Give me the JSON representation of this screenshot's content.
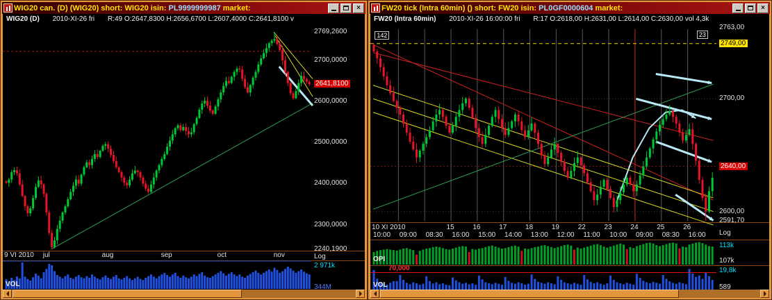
{
  "colors": {
    "frame": "#e2973f",
    "frame_dark": "#8a4713",
    "title_text": "#ffe400",
    "isin_text": "#9adcff",
    "chart_bg": "#000000",
    "candle_up": "#00c832",
    "candle_down": "#e61428",
    "trend_green": "#2fa356",
    "trend_yellow": "#d8d820",
    "trend_cyan": "#b9e8f5",
    "trend_red": "#cc2020",
    "grid_gray": "#5a5a5a",
    "vol_blue": "#2050e0",
    "opi_green": "#00a028",
    "opi_red": "#d01020",
    "axis_text": "#e0e0e0",
    "price_box_bg": "#d80000",
    "yellow_box_bg": "#ffe400",
    "cyan_value": "#00e0ff",
    "blue_value": "#4f7dff",
    "red_value": "#ff3030"
  },
  "left_window": {
    "title_parts": [
      "WIG20 can.",
      " (D) ",
      " (WIG20) short: WIG20 isin: ",
      "PL9999999987",
      " market:"
    ],
    "info": {
      "symbol": "WIG20 (D)",
      "datetime": "2010-XI-26 fri",
      "ohlc": "R:49 O:2647,8300 H:2656,6700 L:2607,4000 C:2641,8100 v"
    },
    "y_axis": {
      "scale_label": "Log",
      "labels": [
        {
          "text": "2769,2600",
          "price": 2769.26,
          "kind": "plain"
        },
        {
          "text": "2700,0000",
          "price": 2700,
          "kind": "plain"
        },
        {
          "text": "2641,8100",
          "price": 2641.81,
          "kind": "red"
        },
        {
          "text": "2600,0000",
          "price": 2600,
          "kind": "plain"
        },
        {
          "text": "2500,0000",
          "price": 2500,
          "kind": "plain"
        },
        {
          "text": "2400,0000",
          "price": 2400,
          "kind": "plain"
        },
        {
          "text": "2300,0000",
          "price": 2300,
          "kind": "plain"
        },
        {
          "text": "2240,1900",
          "price": 2240.19,
          "kind": "plain"
        }
      ]
    },
    "x_axis": {
      "labels": [
        {
          "text": "9 VI 2010",
          "index": 0
        },
        {
          "text": "jul",
          "index": 16
        },
        {
          "text": "aug",
          "index": 38
        },
        {
          "text": "sep",
          "index": 60
        },
        {
          "text": "oct",
          "index": 81
        },
        {
          "text": "nov",
          "index": 102
        }
      ]
    },
    "vol_pane": {
      "label": "VOL",
      "top_value": "2 971k",
      "bottom_value": "344M"
    },
    "chart_data": {
      "type": "candlestick",
      "symbol": "WIG20",
      "interval": "daily",
      "x_range": "2010-06-09 to 2010-11-26",
      "y_range": [
        2240.19,
        2769.26
      ],
      "last_close": 2641.81,
      "scale": "Log",
      "closes": [
        2402,
        2410,
        2428,
        2433,
        2425,
        2398,
        2370,
        2345,
        2328,
        2340,
        2365,
        2392,
        2408,
        2398,
        2375,
        2330,
        2280,
        2245,
        2262,
        2290,
        2310,
        2330,
        2345,
        2362,
        2380,
        2395,
        2410,
        2400,
        2422,
        2440,
        2452,
        2445,
        2460,
        2472,
        2465,
        2480,
        2492,
        2496,
        2485,
        2470,
        2455,
        2440,
        2428,
        2415,
        2402,
        2396,
        2410,
        2425,
        2432,
        2428,
        2415,
        2400,
        2388,
        2380,
        2398,
        2415,
        2432,
        2445,
        2460,
        2472,
        2490,
        2505,
        2520,
        2535,
        2542,
        2530,
        2538,
        2528,
        2520,
        2525,
        2545,
        2560,
        2580,
        2595,
        2602,
        2590,
        2578,
        2570,
        2588,
        2605,
        2622,
        2638,
        2650,
        2645,
        2660,
        2672,
        2680,
        2678,
        2655,
        2635,
        2622,
        2640,
        2658,
        2672,
        2690,
        2705,
        2718,
        2730,
        2742,
        2748,
        2752,
        2740,
        2725,
        2700,
        2672,
        2645,
        2620,
        2608,
        2625,
        2645,
        2662,
        2655,
        2648,
        2641.81
      ],
      "volumes": [
        35,
        28,
        40,
        32,
        45,
        38,
        95,
        44,
        36,
        30,
        42,
        55,
        48,
        38,
        60,
        72,
        90,
        85,
        64,
        50,
        44,
        38,
        46,
        52,
        40,
        36,
        44,
        50,
        42,
        38,
        46,
        40,
        52,
        44,
        38,
        34,
        42,
        48,
        40,
        36,
        44,
        50,
        38,
        34,
        40,
        46,
        38,
        32,
        38,
        44,
        36,
        32,
        40,
        46,
        52,
        44,
        38,
        46,
        52,
        58,
        50,
        44,
        52,
        58,
        46,
        40,
        48,
        42,
        38,
        44,
        52,
        46,
        54,
        60,
        48,
        42,
        40,
        46,
        52,
        58,
        64,
        56,
        48,
        54,
        60,
        52,
        46,
        52,
        44,
        40,
        48,
        54,
        60,
        66,
        58,
        52,
        58,
        64,
        70,
        62,
        76,
        68,
        58,
        64,
        72,
        80,
        74,
        66,
        58,
        64,
        70,
        62,
        56,
        52
      ],
      "marked_high": {
        "index": 100,
        "price": 2769.26
      },
      "marked_low": {
        "index": 17,
        "price": 2240.19
      },
      "wick_unit": 1.4,
      "first_open_offset": 4,
      "h_lines": [
        {
          "price": 2722,
          "color": "#aa1212",
          "dash": "3,3"
        }
      ],
      "trend_lines": [
        {
          "from": [
            17,
            2240.19
          ],
          "to": [
            114.5,
            2596
          ],
          "color_key": "trend_green",
          "width": 1
        },
        {
          "from": [
            100,
            2769
          ],
          "to": [
            114.5,
            2655
          ],
          "color_key": "trend_yellow",
          "width": 1
        },
        {
          "from": [
            100.5,
            2760
          ],
          "to": [
            114.5,
            2612
          ],
          "color_key": "trend_yellow",
          "width": 1
        },
        {
          "from": [
            102,
            2685
          ],
          "to": [
            114.5,
            2590
          ],
          "color_key": "trend_cyan",
          "width": 3
        }
      ]
    }
  },
  "right_window": {
    "title_parts": [
      "FW20 tick",
      " (Intra 60min) ",
      " () short: FW20 isin: ",
      "PL0GF0000604",
      " market:"
    ],
    "info": {
      "symbol": "FW20 (Intra 60min)",
      "datetime": "2010-XI-26 16:00:00 fri",
      "ohlc": "R:17 O:2618,00 H:2631,00 L:2614,00 C:2630,00 vol 4,3k"
    },
    "y_axis": {
      "scale_label": "Log",
      "labels": [
        {
          "text": "2763,00",
          "price": 2763,
          "kind": "plain"
        },
        {
          "text": "2749,00",
          "price": 2749,
          "kind": "yellow"
        },
        {
          "text": "2700,00",
          "price": 2700,
          "kind": "plain"
        },
        {
          "text": "2640,00",
          "price": 2640,
          "kind": "red"
        },
        {
          "text": "2600,00",
          "price": 2600,
          "kind": "plain"
        },
        {
          "text": "2591,70",
          "price": 2591.7,
          "kind": "plain"
        }
      ]
    },
    "x_axis": {
      "dates": [
        {
          "text": "10 XI 2010",
          "index": 0
        },
        {
          "text": "15",
          "index": 24
        },
        {
          "text": "16",
          "index": 32
        },
        {
          "text": "17",
          "index": 40
        },
        {
          "text": "18",
          "index": 48
        },
        {
          "text": "19",
          "index": 56
        },
        {
          "text": "22",
          "index": 64
        },
        {
          "text": "23",
          "index": 72
        },
        {
          "text": "24",
          "index": 80
        },
        {
          "text": "25",
          "index": 88
        },
        {
          "text": "26",
          "index": 96
        }
      ],
      "times": [
        "10:00",
        "09:00",
        "08:30",
        "16:00",
        "15:00",
        "14:00",
        "13:00",
        "12:00",
        "11:00",
        "10:00",
        "09:00",
        "08:30",
        "16:00"
      ]
    },
    "opi_pane": {
      "label": "OPI",
      "top_value": "113k",
      "bottom_value": "107k"
    },
    "vol_pane": {
      "label": "VOL",
      "threshold_label": "70,000",
      "top_value": "19,8k",
      "bottom_value": "589"
    },
    "chart_data": {
      "type": "candlestick",
      "symbol": "FW20",
      "interval": "60min intraday",
      "x_range": "2010-11-10 to 2010-11-26",
      "y_range": [
        2591.7,
        2763.0
      ],
      "last_close": 2630,
      "scale": "Log",
      "closes": [
        2742,
        2736,
        2728,
        2720,
        2712,
        2705,
        2698,
        2692,
        2686,
        2678,
        2670,
        2662,
        2655,
        2648,
        2654,
        2660,
        2666,
        2672,
        2680,
        2686,
        2690,
        2684,
        2676,
        2670,
        2676,
        2684,
        2690,
        2696,
        2700,
        2692,
        2683,
        2674,
        2666,
        2660,
        2668,
        2676,
        2684,
        2690,
        2682,
        2674,
        2668,
        2674,
        2680,
        2686,
        2680,
        2672,
        2666,
        2672,
        2678,
        2670,
        2660,
        2650,
        2642,
        2648,
        2655,
        2660,
        2652,
        2644,
        2636,
        2630,
        2636,
        2643,
        2648,
        2641,
        2634,
        2626,
        2618,
        2610,
        2615,
        2622,
        2628,
        2620,
        2612,
        2604,
        2610,
        2617,
        2624,
        2630,
        2624,
        2618,
        2624,
        2632,
        2640,
        2648,
        2656,
        2664,
        2671,
        2677,
        2682,
        2686,
        2689,
        2684,
        2678,
        2670,
        2663,
        2668,
        2673,
        2660,
        2645,
        2628,
        2612,
        2600,
        2618,
        2630
      ],
      "volumes": [
        80,
        45,
        30,
        25,
        20,
        28,
        35,
        35,
        60,
        40,
        28,
        22,
        30,
        26,
        20,
        24,
        55,
        35,
        25,
        30,
        22,
        26,
        20,
        18,
        50,
        38,
        30,
        24,
        28,
        22,
        26,
        20,
        58,
        42,
        30,
        26,
        22,
        28,
        24,
        20,
        52,
        36,
        28,
        24,
        30,
        26,
        20,
        24,
        62,
        44,
        32,
        28,
        24,
        30,
        26,
        22,
        55,
        40,
        30,
        26,
        22,
        28,
        24,
        20,
        60,
        42,
        32,
        26,
        30,
        24,
        20,
        26,
        58,
        40,
        30,
        26,
        22,
        28,
        24,
        20,
        65,
        48,
        36,
        30,
        26,
        32,
        28,
        24,
        60,
        44,
        34,
        28,
        24,
        30,
        26,
        22,
        85,
        66,
        52,
        58,
        44,
        70,
        55,
        40
      ],
      "opi": [
        50,
        55,
        58,
        60,
        62,
        60,
        58,
        56,
        60,
        64,
        66,
        62,
        58,
        -40,
        55,
        60,
        64,
        66,
        70,
        72,
        70,
        66,
        62,
        60,
        64,
        68,
        72,
        74,
        72,
        -50,
        62,
        60,
        64,
        66,
        70,
        74,
        76,
        72,
        68,
        64,
        66,
        70,
        74,
        76,
        72,
        -55,
        64,
        62,
        66,
        70,
        72,
        76,
        78,
        74,
        70,
        66,
        70,
        74,
        78,
        80,
        76,
        -60,
        68,
        64,
        68,
        72,
        76,
        80,
        82,
        78,
        72,
        68,
        72,
        76,
        80,
        84,
        80,
        -62,
        70,
        66,
        74,
        78,
        82,
        86,
        88,
        84,
        78,
        74,
        78,
        82,
        86,
        88,
        84,
        -65,
        72,
        70,
        80,
        84,
        88,
        90,
        86,
        80,
        74,
        72
      ],
      "marked_high": {
        "index": 0,
        "price": 2749
      },
      "marked_low": {
        "index": 101,
        "price": 2591.7
      },
      "wick_unit": 0.7,
      "first_open_offset": 6,
      "h_lines": [
        {
          "price": 2749,
          "color": "#e8d800",
          "dash": "5,4"
        },
        {
          "price": 2700,
          "color": "#3c3c3c",
          "dash": "1,3"
        },
        {
          "price": 2600,
          "color": "#3c3c3c",
          "dash": "1,3"
        },
        {
          "price": 2640,
          "color": "#8a1a1a",
          "dash": "2,3"
        }
      ],
      "v_lines": [
        {
          "index": 8
        },
        {
          "index": 16
        },
        {
          "index": 24
        },
        {
          "index": 32
        },
        {
          "index": 40
        },
        {
          "index": 48
        },
        {
          "index": 56
        },
        {
          "index": 64
        },
        {
          "index": 72
        },
        {
          "index": 80,
          "color": "#cc2424"
        },
        {
          "index": 88
        },
        {
          "index": 96
        }
      ],
      "trend_lines": [
        {
          "from": [
            0,
            2748
          ],
          "to": [
            103.5,
            2610
          ],
          "color_key": "trend_red",
          "width": 1
        },
        {
          "from": [
            0,
            2741
          ],
          "to": [
            103.5,
            2663
          ],
          "color_key": "trend_red",
          "width": 1
        },
        {
          "from": [
            0,
            2712
          ],
          "to": [
            103.5,
            2612
          ],
          "color_key": "trend_yellow",
          "width": 1
        },
        {
          "from": [
            0,
            2700
          ],
          "to": [
            103.5,
            2600
          ],
          "color_key": "trend_yellow",
          "width": 1
        },
        {
          "from": [
            0,
            2688
          ],
          "to": [
            103.5,
            2588
          ],
          "color_key": "trend_yellow",
          "width": 1
        },
        {
          "from": [
            0,
            2602
          ],
          "to": [
            103.5,
            2713
          ],
          "color_key": "trend_green",
          "width": 1
        },
        {
          "from": [
            86,
            2722
          ],
          "to": [
            103,
            2714
          ],
          "color_key": "trend_cyan",
          "width": 3,
          "arrow": true
        },
        {
          "from": [
            80,
            2700
          ],
          "to": [
            103,
            2682
          ],
          "color_key": "trend_cyan",
          "width": 3,
          "arrow": true
        },
        {
          "from": [
            86,
            2662
          ],
          "to": [
            103,
            2644
          ],
          "color_key": "trend_cyan",
          "width": 3,
          "arrow": true
        },
        {
          "from": [
            92,
            2615
          ],
          "to": [
            103.5,
            2592
          ],
          "color_key": "trend_cyan",
          "width": 3,
          "arrow": true
        }
      ],
      "curves": [
        {
          "points": [
            [
              74,
              2608
            ],
            [
              79,
              2648
            ],
            [
              84,
              2674
            ],
            [
              89,
              2688
            ],
            [
              94,
              2690
            ],
            [
              98,
              2683
            ]
          ],
          "color_key": "trend_cyan",
          "width": 2,
          "arrow": true
        }
      ],
      "annotations": [
        {
          "text": "142",
          "index": 0.5,
          "price": 2756
        },
        {
          "text": "23",
          "index": 98.5,
          "price": 2757
        }
      ]
    }
  }
}
